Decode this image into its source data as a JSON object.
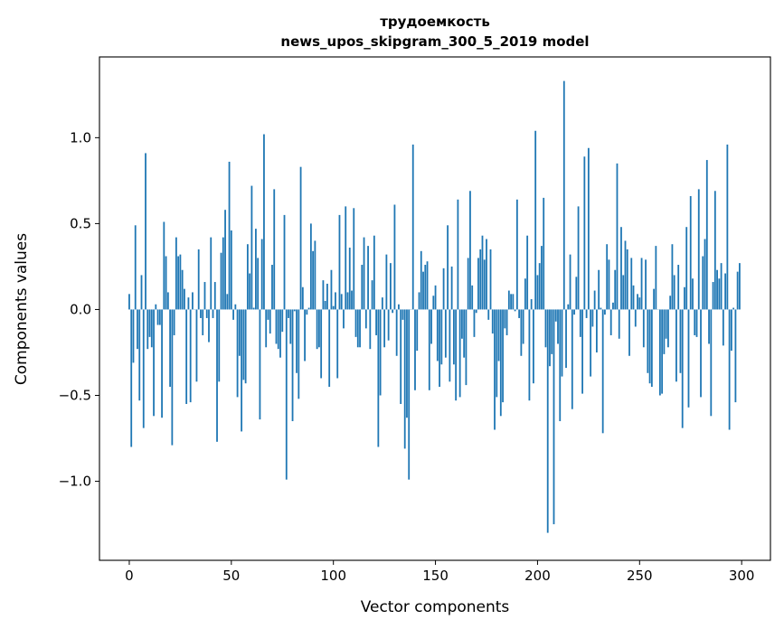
{
  "chart_data": {
    "type": "bar",
    "title": "трудоемкость",
    "subtitle": "news_upos_skipgram_300_5_2019 model",
    "xlabel": "Vector components",
    "ylabel": "Components values",
    "xlim": [
      -14.6,
      314.1
    ],
    "ylim": [
      -1.46,
      1.47
    ],
    "xticks": [
      0,
      50,
      100,
      150,
      200,
      250,
      300
    ],
    "xtick_labels": [
      "0",
      "50",
      "100",
      "150",
      "200",
      "250",
      "300"
    ],
    "yticks": [
      -1.0,
      -0.5,
      0.0,
      0.5,
      1.0
    ],
    "ytick_labels": [
      "−1.0",
      "−0.5",
      "0.0",
      "0.5",
      "1.0"
    ],
    "grid": false,
    "bar_color": "#1f77b4",
    "values": [
      0.09,
      -0.8,
      -0.31,
      0.49,
      -0.23,
      -0.53,
      0.2,
      -0.69,
      0.91,
      -0.23,
      -0.16,
      -0.22,
      -0.62,
      0.03,
      -0.09,
      -0.09,
      -0.63,
      0.51,
      0.31,
      0.1,
      -0.45,
      -0.79,
      -0.15,
      0.42,
      0.31,
      0.32,
      0.23,
      0.12,
      -0.55,
      0.07,
      -0.54,
      0.1,
      0.0,
      -0.42,
      0.35,
      -0.05,
      -0.15,
      0.16,
      -0.05,
      -0.19,
      0.42,
      -0.05,
      0.16,
      -0.77,
      -0.42,
      0.33,
      0.42,
      0.58,
      0.09,
      0.86,
      0.46,
      -0.06,
      0.03,
      -0.51,
      -0.27,
      -0.71,
      -0.41,
      -0.43,
      0.38,
      0.21,
      0.72,
      0.01,
      0.47,
      0.3,
      -0.64,
      0.41,
      1.02,
      -0.22,
      -0.06,
      -0.14,
      0.26,
      0.7,
      -0.2,
      -0.23,
      -0.28,
      -0.13,
      0.55,
      -0.99,
      -0.05,
      -0.2,
      -0.65,
      -0.01,
      -0.37,
      -0.52,
      0.83,
      0.13,
      -0.3,
      -0.03,
      0.01,
      0.5,
      0.34,
      0.4,
      -0.23,
      -0.22,
      -0.4,
      0.17,
      0.05,
      0.15,
      -0.45,
      0.23,
      0.02,
      0.1,
      -0.4,
      0.55,
      0.09,
      -0.11,
      0.6,
      0.1,
      0.36,
      0.11,
      0.59,
      -0.16,
      -0.22,
      -0.22,
      0.26,
      0.42,
      -0.11,
      0.37,
      -0.23,
      0.17,
      0.43,
      -0.15,
      -0.8,
      -0.5,
      0.07,
      -0.22,
      0.32,
      -0.18,
      0.27,
      -0.02,
      0.61,
      -0.27,
      0.03,
      -0.55,
      -0.06,
      -0.81,
      -0.63,
      -0.99,
      0.0,
      0.96,
      -0.47,
      -0.24,
      0.1,
      0.34,
      0.22,
      0.26,
      0.28,
      -0.47,
      -0.2,
      0.08,
      0.14,
      -0.3,
      -0.45,
      -0.32,
      0.24,
      -0.28,
      0.49,
      -0.42,
      0.25,
      -0.32,
      -0.53,
      0.64,
      -0.51,
      -0.17,
      -0.28,
      -0.44,
      0.3,
      0.69,
      0.14,
      -0.16,
      -0.02,
      0.3,
      0.35,
      0.43,
      0.29,
      0.41,
      -0.06,
      0.35,
      -0.14,
      -0.7,
      -0.51,
      -0.3,
      -0.62,
      -0.54,
      -0.11,
      -0.15,
      0.11,
      0.09,
      0.09,
      -0.01,
      0.64,
      -0.05,
      -0.27,
      -0.2,
      0.18,
      0.43,
      -0.53,
      0.06,
      -0.43,
      1.04,
      0.2,
      0.27,
      0.37,
      0.65,
      -0.22,
      -1.3,
      -0.33,
      -0.26,
      -1.25,
      -0.07,
      -0.2,
      -0.65,
      -0.39,
      1.33,
      -0.34,
      0.03,
      0.32,
      -0.58,
      -0.03,
      0.19,
      0.6,
      -0.16,
      -0.49,
      0.89,
      -0.05,
      0.94,
      -0.39,
      -0.1,
      0.11,
      -0.25,
      0.23,
      0.01,
      -0.72,
      -0.03,
      0.38,
      0.29,
      -0.15,
      0.04,
      0.23,
      0.85,
      -0.17,
      0.48,
      0.2,
      0.4,
      0.35,
      -0.27,
      0.3,
      0.14,
      -0.1,
      0.09,
      0.07,
      0.3,
      -0.22,
      0.29,
      -0.37,
      -0.43,
      -0.45,
      0.12,
      0.37,
      0.0,
      -0.5,
      -0.49,
      -0.26,
      -0.17,
      -0.22,
      0.08,
      0.38,
      0.2,
      -0.42,
      0.26,
      -0.37,
      -0.69,
      0.13,
      0.48,
      -0.57,
      0.66,
      0.18,
      -0.15,
      -0.16,
      0.7,
      -0.51,
      0.31,
      0.41,
      0.87,
      -0.2,
      -0.62,
      0.16,
      0.69,
      0.23,
      0.18,
      0.27,
      -0.21,
      0.21,
      0.96,
      -0.7,
      -0.24,
      0.01,
      -0.54,
      0.22,
      0.27
    ]
  }
}
